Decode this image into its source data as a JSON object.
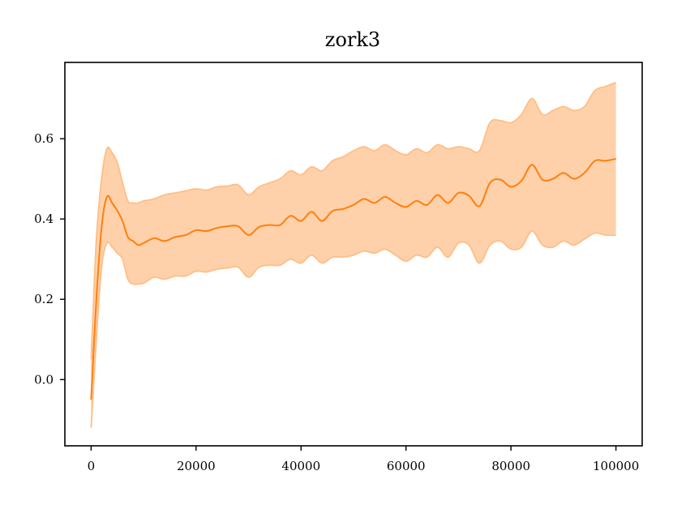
{
  "chart_data": {
    "type": "line",
    "title": "zork3",
    "xlabel": "",
    "ylabel": "",
    "xlim": [
      -5000,
      105000
    ],
    "ylim": [
      -0.165,
      0.79
    ],
    "x_ticks": [
      0,
      20000,
      40000,
      60000,
      80000,
      100000
    ],
    "y_ticks": [
      0.0,
      0.2,
      0.4,
      0.6
    ],
    "x_tick_labels": [
      "0",
      "20000",
      "40000",
      "60000",
      "80000",
      "100000"
    ],
    "y_tick_labels": [
      "0.0",
      "0.2",
      "0.4",
      "0.6"
    ],
    "grid": false,
    "legend": "none",
    "colors": {
      "line": "#ff7f0e",
      "band": "#ffbe86"
    },
    "x": [
      0,
      1000,
      2000,
      3000,
      4000,
      5000,
      6000,
      7000,
      8000,
      9000,
      10000,
      12000,
      14000,
      16000,
      18000,
      20000,
      22000,
      24000,
      26000,
      28000,
      30000,
      32000,
      34000,
      36000,
      38000,
      40000,
      42000,
      44000,
      46000,
      48000,
      50000,
      52000,
      54000,
      56000,
      58000,
      60000,
      62000,
      64000,
      66000,
      68000,
      70000,
      72000,
      74000,
      76000,
      78000,
      80000,
      82000,
      84000,
      86000,
      88000,
      90000,
      92000,
      94000,
      96000,
      98000,
      100000
    ],
    "series": [
      {
        "type": "mean",
        "values": [
          -0.05,
          0.2,
          0.38,
          0.455,
          0.44,
          0.42,
          0.395,
          0.355,
          0.345,
          0.335,
          0.34,
          0.352,
          0.345,
          0.355,
          0.36,
          0.372,
          0.37,
          0.378,
          0.382,
          0.382,
          0.36,
          0.38,
          0.385,
          0.385,
          0.408,
          0.395,
          0.418,
          0.395,
          0.42,
          0.425,
          0.435,
          0.45,
          0.44,
          0.455,
          0.44,
          0.43,
          0.445,
          0.435,
          0.46,
          0.44,
          0.465,
          0.458,
          0.432,
          0.49,
          0.498,
          0.48,
          0.495,
          0.535,
          0.498,
          0.5,
          0.515,
          0.5,
          0.515,
          0.545,
          0.545,
          0.55
        ]
      },
      {
        "type": "upper",
        "values": [
          0.05,
          0.35,
          0.5,
          0.575,
          0.565,
          0.54,
          0.49,
          0.445,
          0.44,
          0.44,
          0.445,
          0.45,
          0.46,
          0.465,
          0.47,
          0.475,
          0.472,
          0.48,
          0.482,
          0.485,
          0.46,
          0.48,
          0.49,
          0.5,
          0.52,
          0.51,
          0.53,
          0.52,
          0.545,
          0.555,
          0.57,
          0.58,
          0.57,
          0.585,
          0.57,
          0.56,
          0.575,
          0.565,
          0.585,
          0.575,
          0.58,
          0.575,
          0.57,
          0.64,
          0.645,
          0.64,
          0.66,
          0.7,
          0.66,
          0.67,
          0.68,
          0.67,
          0.68,
          0.72,
          0.73,
          0.74
        ]
      },
      {
        "type": "lower",
        "values": [
          -0.12,
          0.1,
          0.28,
          0.34,
          0.33,
          0.315,
          0.3,
          0.25,
          0.238,
          0.238,
          0.24,
          0.255,
          0.25,
          0.258,
          0.258,
          0.27,
          0.268,
          0.275,
          0.278,
          0.28,
          0.255,
          0.28,
          0.285,
          0.285,
          0.3,
          0.29,
          0.31,
          0.29,
          0.305,
          0.305,
          0.31,
          0.32,
          0.315,
          0.325,
          0.31,
          0.295,
          0.31,
          0.305,
          0.33,
          0.305,
          0.34,
          0.335,
          0.29,
          0.335,
          0.345,
          0.325,
          0.33,
          0.37,
          0.335,
          0.33,
          0.345,
          0.335,
          0.35,
          0.365,
          0.36,
          0.36
        ]
      }
    ]
  }
}
